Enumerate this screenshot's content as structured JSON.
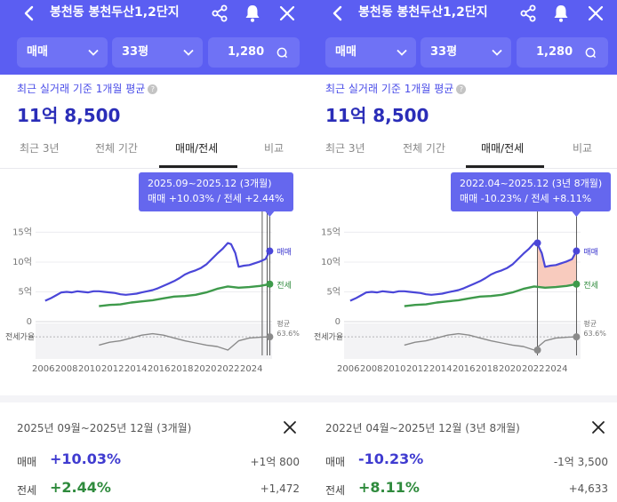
{
  "colors": {
    "brand": "#5b5ef2",
    "sale_line": "#4a46d8",
    "jeonse_line": "#3e9a4b",
    "ratio_line": "#8a8a8a",
    "highlight": "#f6b9a8"
  },
  "panels": [
    {
      "header": {
        "title": "봉천동 봉천두산1,2단지",
        "icons": [
          "back-icon",
          "share-icon",
          "bell-icon",
          "close-icon"
        ]
      },
      "filters": {
        "type": "매매",
        "size": "33평",
        "price": "1,280"
      },
      "subtitle": "최근 실거래 기준 1개월 평균",
      "price": "11억 8,500",
      "tabs": [
        "최근 3년",
        "전체 기간",
        "매매/전세",
        "비교"
      ],
      "active_tab": "매매/전세",
      "tooltip": {
        "range": "2025.09~2025.12 (3개월)",
        "change": "매매 +10.03%  /  전세 +2.44%"
      },
      "chart_labels": {
        "sale": "매매",
        "jeonse": "전세",
        "ratio_label": "전세가율",
        "avg_label": "평균",
        "avg_value": "63.6%"
      },
      "detail": {
        "range": "2025년 09월~2025년 12월 (3개월)",
        "rows": [
          {
            "key": "매매",
            "pct": "+10.03%",
            "amount": "+1억 800"
          },
          {
            "key": "전세",
            "pct": "+2.44%",
            "amount": "+1,472"
          }
        ]
      }
    },
    {
      "header": {
        "title": "봉천동 봉천두산1,2단지",
        "icons": [
          "back-icon",
          "share-icon",
          "bell-icon",
          "close-icon"
        ]
      },
      "filters": {
        "type": "매매",
        "size": "33평",
        "price": "1,280"
      },
      "subtitle": "최근 실거래 기준 1개월 평균",
      "price": "11억 8,500",
      "tabs": [
        "최근 3년",
        "전체 기간",
        "매매/전세",
        "비교"
      ],
      "active_tab": "매매/전세",
      "tooltip": {
        "range": "2022.04~2025.12 (3년 8개월)",
        "change": "매매 -10.23%  /  전세 +8.11%"
      },
      "chart_labels": {
        "sale": "매매",
        "jeonse": "전세",
        "ratio_label": "전세가율",
        "avg_label": "평균",
        "avg_value": "63.6%"
      },
      "detail": {
        "range": "2022년 04월~2025년 12월 (3년 8개월)",
        "rows": [
          {
            "key": "매매",
            "pct": "-10.23%",
            "amount": "-1억 3,500"
          },
          {
            "key": "전세",
            "pct": "+8.11%",
            "amount": "+4,633"
          }
        ]
      }
    }
  ],
  "chart_data": {
    "type": "line",
    "y_ticks": [
      "15억",
      "10억",
      "5억",
      "0"
    ],
    "x_ticks": [
      "2006",
      "2008",
      "2010",
      "2012",
      "2014",
      "2016",
      "2018",
      "2020",
      "2022",
      "2024"
    ],
    "ylim": [
      0,
      17
    ],
    "series": [
      {
        "name": "매매",
        "x": [
          2005.0,
          2005.5,
          2006.0,
          2006.5,
          2007.0,
          2007.5,
          2008.0,
          2008.5,
          2009.0,
          2009.5,
          2010.0,
          2010.5,
          2011.0,
          2011.5,
          2012.0,
          2012.5,
          2013.0,
          2013.5,
          2014.0,
          2014.5,
          2015.0,
          2015.5,
          2016.0,
          2016.5,
          2017.0,
          2017.5,
          2018.0,
          2018.5,
          2019.0,
          2019.5,
          2020.0,
          2020.5,
          2021.0,
          2021.5,
          2022.0,
          2022.3,
          2022.7,
          2023.0,
          2023.5,
          2024.0,
          2024.5,
          2025.0,
          2025.5,
          2025.9
        ],
        "values": [
          3.5,
          3.9,
          4.4,
          4.9,
          5.0,
          4.9,
          5.1,
          5.0,
          4.9,
          5.1,
          5.1,
          5.0,
          4.9,
          4.8,
          4.6,
          4.5,
          4.6,
          4.7,
          4.9,
          5.1,
          5.3,
          5.6,
          6.0,
          6.4,
          6.8,
          7.3,
          7.9,
          8.3,
          8.6,
          9.0,
          9.6,
          10.5,
          11.4,
          12.2,
          13.2,
          13.0,
          11.5,
          9.2,
          9.4,
          9.5,
          9.8,
          10.1,
          10.5,
          11.85
        ]
      },
      {
        "name": "전세",
        "x": [
          2010.0,
          2011.0,
          2012.0,
          2013.0,
          2014.0,
          2015.0,
          2016.0,
          2017.0,
          2018.0,
          2019.0,
          2020.0,
          2021.0,
          2022.0,
          2023.0,
          2024.0,
          2025.0,
          2025.9
        ],
        "values": [
          2.6,
          2.8,
          2.9,
          3.2,
          3.4,
          3.6,
          3.9,
          4.2,
          4.3,
          4.5,
          4.9,
          5.5,
          5.9,
          5.7,
          5.8,
          6.0,
          6.3
        ]
      },
      {
        "name": "전세가율",
        "x": [
          2010.0,
          2011.0,
          2012.0,
          2013.0,
          2014.0,
          2015.0,
          2016.0,
          2017.0,
          2018.0,
          2019.0,
          2020.0,
          2021.0,
          2022.0,
          2023.0,
          2024.0,
          2025.0,
          2025.9
        ],
        "values": [
          52,
          56,
          58,
          62,
          66,
          68,
          66,
          62,
          58,
          55,
          52,
          50,
          45,
          58,
          62,
          63,
          63.6
        ]
      }
    ]
  }
}
